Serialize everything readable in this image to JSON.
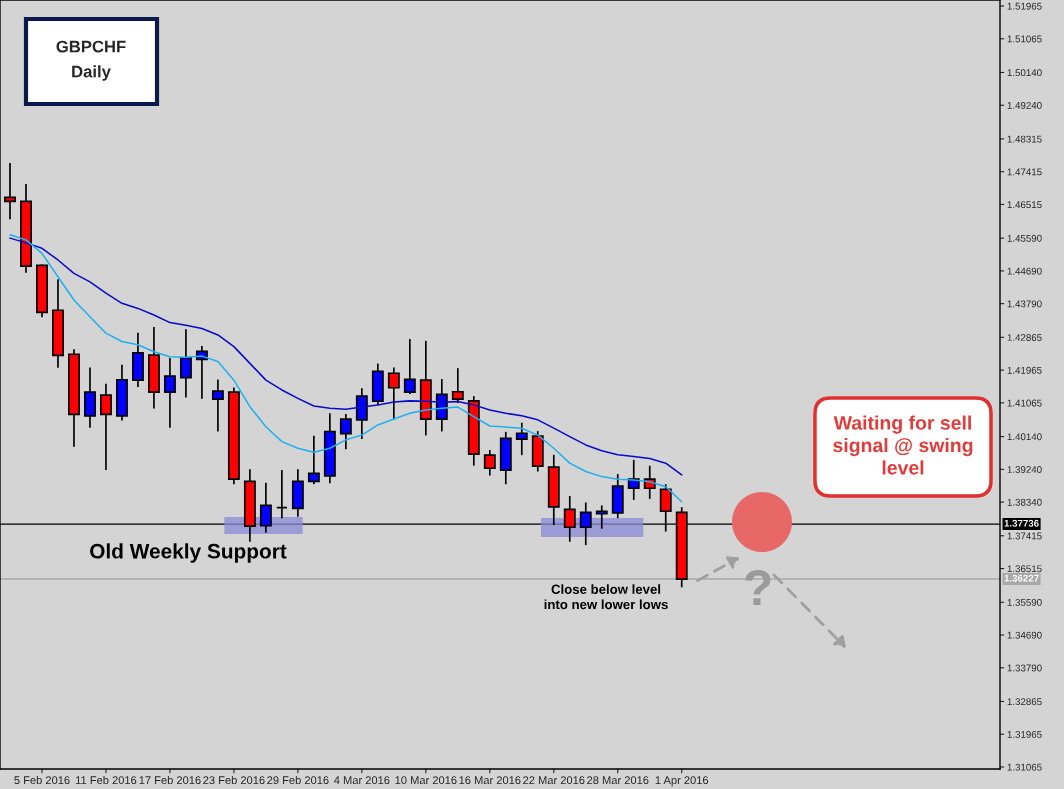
{
  "chart_data": {
    "type": "candlestick",
    "title": "GBPCHF",
    "subtitle": "Daily",
    "categories": [
      null,
      null,
      "5 Feb 2016",
      null,
      null,
      null,
      "11 Feb 2016",
      null,
      null,
      null,
      "17 Feb 2016",
      null,
      null,
      null,
      "23 Feb 2016",
      null,
      null,
      null,
      "29 Feb 2016",
      null,
      null,
      null,
      "4 Mar 2016",
      null,
      null,
      null,
      "10 Mar 2016",
      null,
      null,
      null,
      "16 Mar 2016",
      null,
      null,
      null,
      "22 Mar 2016",
      null,
      null,
      null,
      "28 Mar 2016",
      null,
      null,
      null,
      "1 Apr 2016"
    ],
    "ohlc": [
      [
        1.4671,
        1.4765,
        1.4611,
        1.466
      ],
      [
        1.466,
        1.4708,
        1.4464,
        1.4482
      ],
      [
        1.4484,
        1.4487,
        1.4342,
        1.4355
      ],
      [
        1.4361,
        1.4446,
        1.4203,
        1.4237
      ],
      [
        1.424,
        1.4254,
        1.3986,
        1.4075
      ],
      [
        1.4071,
        1.4204,
        1.4038,
        1.4136
      ],
      [
        1.4128,
        1.4159,
        1.3922,
        1.4075
      ],
      [
        1.4071,
        1.4211,
        1.4058,
        1.417
      ],
      [
        1.4169,
        1.4299,
        1.415,
        1.4244
      ],
      [
        1.4238,
        1.4315,
        1.4091,
        1.4136
      ],
      [
        1.4136,
        1.423,
        1.4038,
        1.418
      ],
      [
        1.4176,
        1.4309,
        1.4121,
        1.423
      ],
      [
        1.4226,
        1.4263,
        1.4118,
        1.4248
      ],
      [
        1.4117,
        1.4171,
        1.4028,
        1.4139
      ],
      [
        1.4136,
        1.4149,
        1.3883,
        1.3897
      ],
      [
        1.3891,
        1.3924,
        1.3725,
        1.3768
      ],
      [
        1.3769,
        1.3887,
        1.375,
        1.3825
      ],
      [
        1.3819,
        1.3922,
        1.379,
        1.3819
      ],
      [
        1.3817,
        1.3924,
        1.3794,
        1.3891
      ],
      [
        1.3891,
        1.4016,
        1.3883,
        1.3913
      ],
      [
        1.3906,
        1.4078,
        1.3886,
        1.4028
      ],
      [
        1.4022,
        1.4076,
        1.3979,
        1.4062
      ],
      [
        1.406,
        1.4147,
        1.4007,
        1.4125
      ],
      [
        1.4111,
        1.4215,
        1.4101,
        1.4193
      ],
      [
        1.4188,
        1.4204,
        1.406,
        1.4148
      ],
      [
        1.4136,
        1.4282,
        1.4131,
        1.4171
      ],
      [
        1.4169,
        1.4277,
        1.4017,
        1.4062
      ],
      [
        1.4062,
        1.4172,
        1.4028,
        1.413
      ],
      [
        1.4137,
        1.4202,
        1.4106,
        1.4117
      ],
      [
        1.4112,
        1.4125,
        1.3934,
        1.3966
      ],
      [
        1.3963,
        1.3977,
        1.3907,
        1.3927
      ],
      [
        1.3922,
        1.4027,
        1.3883,
        1.4009
      ],
      [
        1.4007,
        1.4052,
        1.3963,
        1.4023
      ],
      [
        1.4015,
        1.4029,
        1.3918,
        1.3933
      ],
      [
        1.393,
        1.3964,
        1.3771,
        1.3821
      ],
      [
        1.3814,
        1.3851,
        1.3725,
        1.3765
      ],
      [
        1.3765,
        1.3833,
        1.3716,
        1.3806
      ],
      [
        1.3802,
        1.3825,
        1.3761,
        1.3809
      ],
      [
        1.3804,
        1.3911,
        1.379,
        1.3878
      ],
      [
        1.3872,
        1.395,
        1.384,
        1.3897
      ],
      [
        1.3897,
        1.3934,
        1.3843,
        1.3872
      ],
      [
        1.3869,
        1.3883,
        1.3753,
        1.3809
      ],
      [
        1.3806,
        1.382,
        1.36,
        1.36227
      ]
    ],
    "colors": [
      "#ff0000",
      "#ff0000",
      "#ff0000",
      "#ff0000",
      "#ff0000",
      "#0000ff",
      "#ff0000",
      "#0000ff",
      "#0000ff",
      "#ff0000",
      "#0000ff",
      "#0000ff",
      "#0000ff",
      "#0000ff",
      "#ff0000",
      "#ff0000",
      "#0000ff",
      "#000000",
      "#0000ff",
      "#0000ff",
      "#0000ff",
      "#0000ff",
      "#0000ff",
      "#0000ff",
      "#ff0000",
      "#0000ff",
      "#ff0000",
      "#0000ff",
      "#ff0000",
      "#ff0000",
      "#ff0000",
      "#0000ff",
      "#0000ff",
      "#ff0000",
      "#ff0000",
      "#ff0000",
      "#0000ff",
      "#0000ff",
      "#0000ff",
      "#0000ff",
      "#ff0000",
      "#ff0000",
      "#ff0000"
    ],
    "series": [
      {
        "type": "line",
        "color": "#0a0ac8",
        "values": [
          1.4559,
          1.4546,
          1.4531,
          1.4499,
          1.4462,
          1.4439,
          1.4408,
          1.438,
          1.4366,
          1.4348,
          1.4327,
          1.432,
          1.4311,
          1.4293,
          1.4261,
          1.4215,
          1.4169,
          1.4142,
          1.4119,
          1.4098,
          1.4092,
          1.4089,
          1.4095,
          1.4101,
          1.4109,
          1.4112,
          1.4111,
          1.4108,
          1.411,
          1.4101,
          1.4087,
          1.4078,
          1.4071,
          1.406,
          1.4037,
          1.4014,
          1.3991,
          1.3975,
          1.3964,
          1.3959,
          1.3954,
          1.3941,
          1.3909
        ]
      },
      {
        "type": "line",
        "color": "#20b0f0",
        "values": [
          1.4568,
          1.4554,
          1.4517,
          1.4453,
          1.4389,
          1.4343,
          1.4298,
          1.4275,
          1.4266,
          1.4247,
          1.4233,
          1.4232,
          1.4235,
          1.422,
          1.4169,
          1.4096,
          1.4041,
          1.4,
          1.3982,
          1.3971,
          1.3982,
          1.4005,
          1.4018,
          1.4046,
          1.4062,
          1.4078,
          1.4087,
          1.4092,
          1.4095,
          1.4069,
          1.4043,
          1.404,
          1.4037,
          1.4018,
          1.3982,
          1.3941,
          1.3918,
          1.3904,
          1.3897,
          1.3895,
          1.389,
          1.3876,
          1.3835
        ]
      }
    ],
    "ylim": [
      1.3101,
      1.5213
    ],
    "yticks": [
      {
        "value": 1.51965,
        "label": "1.51965"
      },
      {
        "value": 1.51065,
        "label": "1.51065"
      },
      {
        "value": 1.5014,
        "label": "1.50140"
      },
      {
        "value": 1.4924,
        "label": "1.49240"
      },
      {
        "value": 1.48315,
        "label": "1.48315"
      },
      {
        "value": 1.47415,
        "label": "1.47415"
      },
      {
        "value": 1.46515,
        "label": "1.46515"
      },
      {
        "value": 1.4559,
        "label": "1.45590"
      },
      {
        "value": 1.4469,
        "label": "1.44690"
      },
      {
        "value": 1.4379,
        "label": "1.43790"
      },
      {
        "value": 1.42865,
        "label": "1.42865"
      },
      {
        "value": 1.41965,
        "label": "1.41965"
      },
      {
        "value": 1.41065,
        "label": "1.41065"
      },
      {
        "value": 1.4014,
        "label": "1.40140"
      },
      {
        "value": 1.3924,
        "label": "1.39240"
      },
      {
        "value": 1.3834,
        "label": "1.38340"
      },
      {
        "value": 1.37415,
        "label": "1.37415"
      },
      {
        "value": 1.36515,
        "label": "1.36515"
      },
      {
        "value": 1.3559,
        "label": "1.35590"
      },
      {
        "value": 1.3469,
        "label": "1.34690"
      },
      {
        "value": 1.3379,
        "label": "1.33790"
      },
      {
        "value": 1.32865,
        "label": "1.32865"
      },
      {
        "value": 1.31965,
        "label": "1.31965"
      },
      {
        "value": 1.31065,
        "label": "1.31065"
      }
    ],
    "ref_lines": [
      {
        "axis": "y",
        "value": 1.37736,
        "label": "1.37736",
        "color": "#000000"
      },
      {
        "axis": "y",
        "value": 1.36227,
        "label": "1.36227",
        "color": "#a8a8a8"
      }
    ],
    "annotations": [
      "Old Weekly Support",
      "Close below level\ninto new lower lows",
      "Waiting for sell\nsignal @ swing\nlevel",
      "?"
    ],
    "grid": false,
    "legend": false
  }
}
